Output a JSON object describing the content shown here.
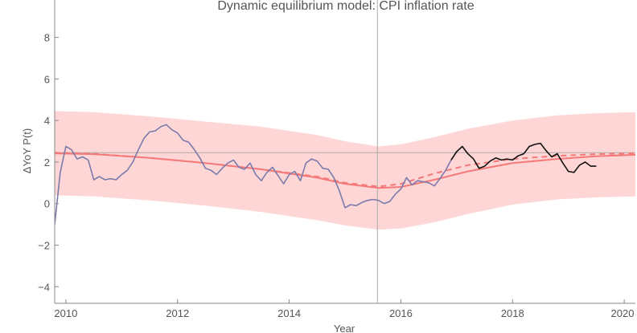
{
  "chart_data": {
    "type": "line",
    "title": "Dynamic equilibrium model: CPI inflation rate",
    "xlabel": "Year",
    "ylabel": "ΔYoY P(t)",
    "xlim": [
      2009.8,
      2020.2
    ],
    "ylim": [
      -4.8,
      9.8
    ],
    "x_ticks": [
      2010,
      2012,
      2014,
      2016,
      2018,
      2020
    ],
    "y_ticks": [
      -4,
      -2,
      0,
      2,
      4,
      6,
      8
    ],
    "reference_lines": {
      "horizontal_y": 2.45,
      "vertical_x": 2015.58
    },
    "colors": {
      "band": "#ffd6d6",
      "model": "#f47a7a",
      "data_pre": "#7b7bab",
      "data_post": "#111111",
      "reference": "#aaaaaa"
    },
    "series": [
      {
        "role": "band_upper",
        "x": [
          2009.8,
          2010.5,
          2011.5,
          2012.5,
          2013.5,
          2014.5,
          2015.0,
          2015.6,
          2016.0,
          2016.6,
          2017.2,
          2018.0,
          2018.8,
          2019.5,
          2020.2
        ],
        "values": [
          4.45,
          4.4,
          4.2,
          3.95,
          3.7,
          3.3,
          3.0,
          2.75,
          2.85,
          3.2,
          3.6,
          4.0,
          4.25,
          4.35,
          4.4
        ]
      },
      {
        "role": "band_lower",
        "x": [
          2009.8,
          2010.5,
          2011.5,
          2012.5,
          2013.5,
          2014.5,
          2015.0,
          2015.6,
          2016.0,
          2016.6,
          2017.2,
          2018.0,
          2018.8,
          2019.5,
          2020.2
        ],
        "values": [
          0.4,
          0.35,
          0.15,
          -0.1,
          -0.4,
          -0.8,
          -1.05,
          -1.25,
          -1.2,
          -0.9,
          -0.5,
          -0.05,
          0.2,
          0.3,
          0.35
        ]
      },
      {
        "role": "model_solid",
        "x": [
          2009.8,
          2010.5,
          2011.5,
          2012.5,
          2013.5,
          2014.5,
          2015.0,
          2015.6,
          2016.0,
          2016.6,
          2017.2,
          2018.0,
          2018.8,
          2019.5,
          2020.2
        ],
        "values": [
          2.42,
          2.38,
          2.2,
          1.95,
          1.65,
          1.25,
          0.95,
          0.75,
          0.8,
          1.15,
          1.55,
          1.95,
          2.15,
          2.28,
          2.35
        ]
      },
      {
        "role": "model_dashed",
        "x": [
          2009.8,
          2010.5,
          2011.5,
          2012.5,
          2013.5,
          2014.5,
          2015.0,
          2015.6,
          2016.0,
          2016.6,
          2017.2,
          2018.0,
          2018.8,
          2019.5,
          2020.2
        ],
        "values": [
          2.45,
          2.4,
          2.2,
          1.95,
          1.65,
          1.3,
          1.0,
          0.82,
          0.95,
          1.45,
          1.85,
          2.15,
          2.3,
          2.38,
          2.42
        ]
      },
      {
        "role": "data_pre",
        "x": [
          2009.8,
          2009.9,
          2010.0,
          2010.1,
          2010.2,
          2010.3,
          2010.4,
          2010.5,
          2010.6,
          2010.7,
          2010.8,
          2010.9,
          2011.0,
          2011.1,
          2011.2,
          2011.3,
          2011.4,
          2011.5,
          2011.6,
          2011.7,
          2011.8,
          2011.9,
          2012.0,
          2012.1,
          2012.2,
          2012.3,
          2012.4,
          2012.5,
          2012.6,
          2012.7,
          2012.8,
          2012.9,
          2013.0,
          2013.1,
          2013.2,
          2013.3,
          2013.4,
          2013.5,
          2013.6,
          2013.7,
          2013.8,
          2013.9,
          2014.0,
          2014.1,
          2014.2,
          2014.3,
          2014.4,
          2014.5,
          2014.6,
          2014.7,
          2014.8,
          2014.9,
          2015.0,
          2015.1,
          2015.2,
          2015.3,
          2015.4,
          2015.5,
          2015.6,
          2015.7,
          2015.8,
          2015.9,
          2016.0,
          2016.1,
          2016.2,
          2016.3,
          2016.4,
          2016.5,
          2016.6,
          2016.7,
          2016.8,
          2016.9
        ],
        "values": [
          -1.0,
          1.5,
          2.75,
          2.6,
          2.15,
          2.25,
          2.1,
          1.15,
          1.3,
          1.15,
          1.2,
          1.15,
          1.4,
          1.6,
          2.0,
          2.6,
          3.15,
          3.45,
          3.5,
          3.7,
          3.8,
          3.55,
          3.4,
          3.05,
          2.95,
          2.6,
          2.2,
          1.7,
          1.6,
          1.4,
          1.7,
          1.95,
          2.1,
          1.75,
          1.65,
          1.95,
          1.4,
          1.1,
          1.5,
          1.75,
          1.35,
          0.95,
          1.4,
          1.55,
          1.1,
          1.95,
          2.15,
          2.05,
          1.7,
          1.65,
          1.25,
          0.6,
          -0.2,
          -0.05,
          -0.1,
          0.05,
          0.15,
          0.2,
          0.15,
          0.0,
          0.1,
          0.45,
          0.7,
          1.25,
          0.9,
          1.1,
          1.05,
          1.0,
          0.85,
          1.2,
          1.6,
          2.1
        ]
      },
      {
        "role": "data_post",
        "x": [
          2016.9,
          2017.0,
          2017.1,
          2017.2,
          2017.3,
          2017.4,
          2017.5,
          2017.6,
          2017.7,
          2017.8,
          2017.9,
          2018.0,
          2018.1,
          2018.2,
          2018.3,
          2018.4,
          2018.5,
          2018.6,
          2018.7,
          2018.8,
          2018.9,
          2019.0,
          2019.1,
          2019.2,
          2019.3,
          2019.4,
          2019.5
        ],
        "values": [
          2.1,
          2.5,
          2.75,
          2.4,
          2.15,
          1.7,
          1.8,
          2.05,
          2.2,
          2.1,
          2.15,
          2.1,
          2.3,
          2.4,
          2.75,
          2.85,
          2.9,
          2.55,
          2.25,
          2.4,
          1.95,
          1.55,
          1.5,
          1.85,
          2.0,
          1.8,
          1.8
        ]
      }
    ]
  }
}
